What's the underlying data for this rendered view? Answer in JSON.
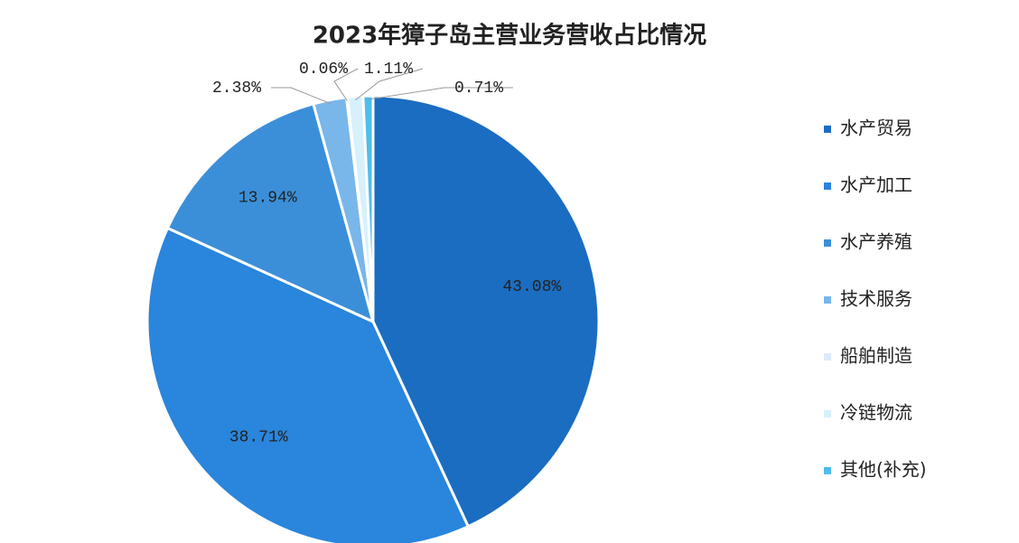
{
  "chart_data": {
    "type": "pie",
    "title": "2023年獐子岛主营业务营收占比情况",
    "categories": [
      "水产贸易",
      "水产加工",
      "水产养殖",
      "技术服务",
      "船舶制造",
      "冷链物流",
      "其他(补充)"
    ],
    "values": [
      43.08,
      38.71,
      13.94,
      2.38,
      0.06,
      1.11,
      0.71
    ],
    "value_labels": [
      "43.08%",
      "38.71%",
      "13.94%",
      "2.38%",
      "0.06%",
      "1.11%",
      "0.71%"
    ],
    "colors": [
      "#1b6dc1",
      "#2a85dc",
      "#3b8fd9",
      "#79b6ea",
      "#dcebfa",
      "#d6f1fb",
      "#4fbdea"
    ],
    "legend": "right"
  }
}
